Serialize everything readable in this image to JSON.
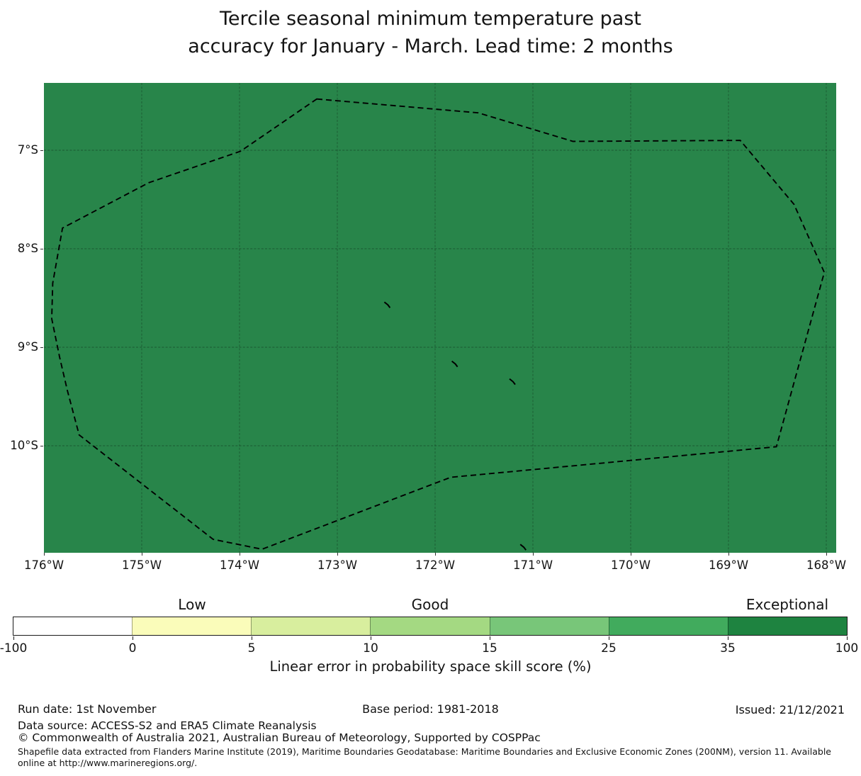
{
  "chart_data": {
    "type": "heatmap",
    "description": "Geographic skill-score map: uniform dark-green filled region (entire domain in highest class) with dashed EEZ maritime boundary overlay and small island marks",
    "title": "Tercile seasonal minimum temperature past\naccuracy for January - March. Lead time: 2 months",
    "x_axis": {
      "tick_degrees_west": [
        176,
        175,
        174,
        173,
        172,
        171,
        170,
        169,
        168
      ],
      "tick_labels": [
        "176°W",
        "175°W",
        "174°W",
        "173°W",
        "172°W",
        "171°W",
        "170°W",
        "169°W",
        "168°W"
      ]
    },
    "y_axis": {
      "tick_degrees_south": [
        7,
        8,
        9,
        10
      ],
      "tick_labels": [
        "7°S",
        "8°S",
        "9°S",
        "10°S"
      ]
    },
    "grid": "on, fine dashed dark lines over map fill",
    "map_fill_color": "#28854a",
    "apparent_skill_class": "Exceptional (35-100)",
    "eez_boundary_lonlat_degW_degS": [
      [
        173.21,
        6.48
      ],
      [
        171.56,
        6.62
      ],
      [
        170.59,
        6.91
      ],
      [
        168.88,
        6.9
      ],
      [
        168.33,
        7.55
      ],
      [
        168.02,
        8.24
      ],
      [
        168.51,
        10.01
      ],
      [
        171.84,
        10.32
      ],
      [
        173.77,
        11.05
      ],
      [
        174.27,
        10.95
      ],
      [
        175.64,
        9.89
      ],
      [
        175.76,
        9.44
      ],
      [
        175.84,
        9.1
      ],
      [
        175.92,
        8.71
      ],
      [
        175.91,
        8.35
      ],
      [
        175.81,
        7.79
      ],
      [
        174.93,
        7.33
      ],
      [
        173.99,
        7.01
      ]
    ],
    "islands_lonlat_degW_degS": [
      [
        172.49,
        8.57
      ],
      [
        171.8,
        9.17
      ],
      [
        171.21,
        9.35
      ],
      [
        171.1,
        11.03
      ]
    ],
    "colorbar": {
      "orientation": "horizontal",
      "boundaries": [
        -100,
        0,
        5,
        10,
        15,
        25,
        35,
        100
      ],
      "tick_labels": [
        "-100",
        "0",
        "5",
        "10",
        "15",
        "25",
        "35",
        "100"
      ],
      "segment_colors": [
        "#ffffff",
        "#fafcba",
        "#d8ee9e",
        "#a4d982",
        "#78c679",
        "#41ab5d",
        "#1e8340"
      ],
      "categories": [
        {
          "label": "Low",
          "segment": 1
        },
        {
          "label": "Good",
          "segment": 3
        },
        {
          "label": "Exceptional",
          "segment": 6
        }
      ],
      "label": "Linear error in probability space skill score (%)"
    }
  },
  "footer": {
    "run_date": "Run date: 1st November",
    "base_period": "Base period: 1981-2018",
    "issued": "Issued: 21/12/2021",
    "data_source": "Data source: ACCESS-S2 and ERA5 Climate Reanalysis",
    "copyright": "© Commonwealth of Australia 2021, Australian Bureau of Meteorology, Supported by COSPPac",
    "shapefile_note": "Shapefile data extracted from Flanders Marine Institute (2019), Maritime Boundaries Geodatabase: Maritime Boundaries and Exclusive Economic Zones (200NM), version 11. Available online at http://www.marineregions.org/."
  }
}
